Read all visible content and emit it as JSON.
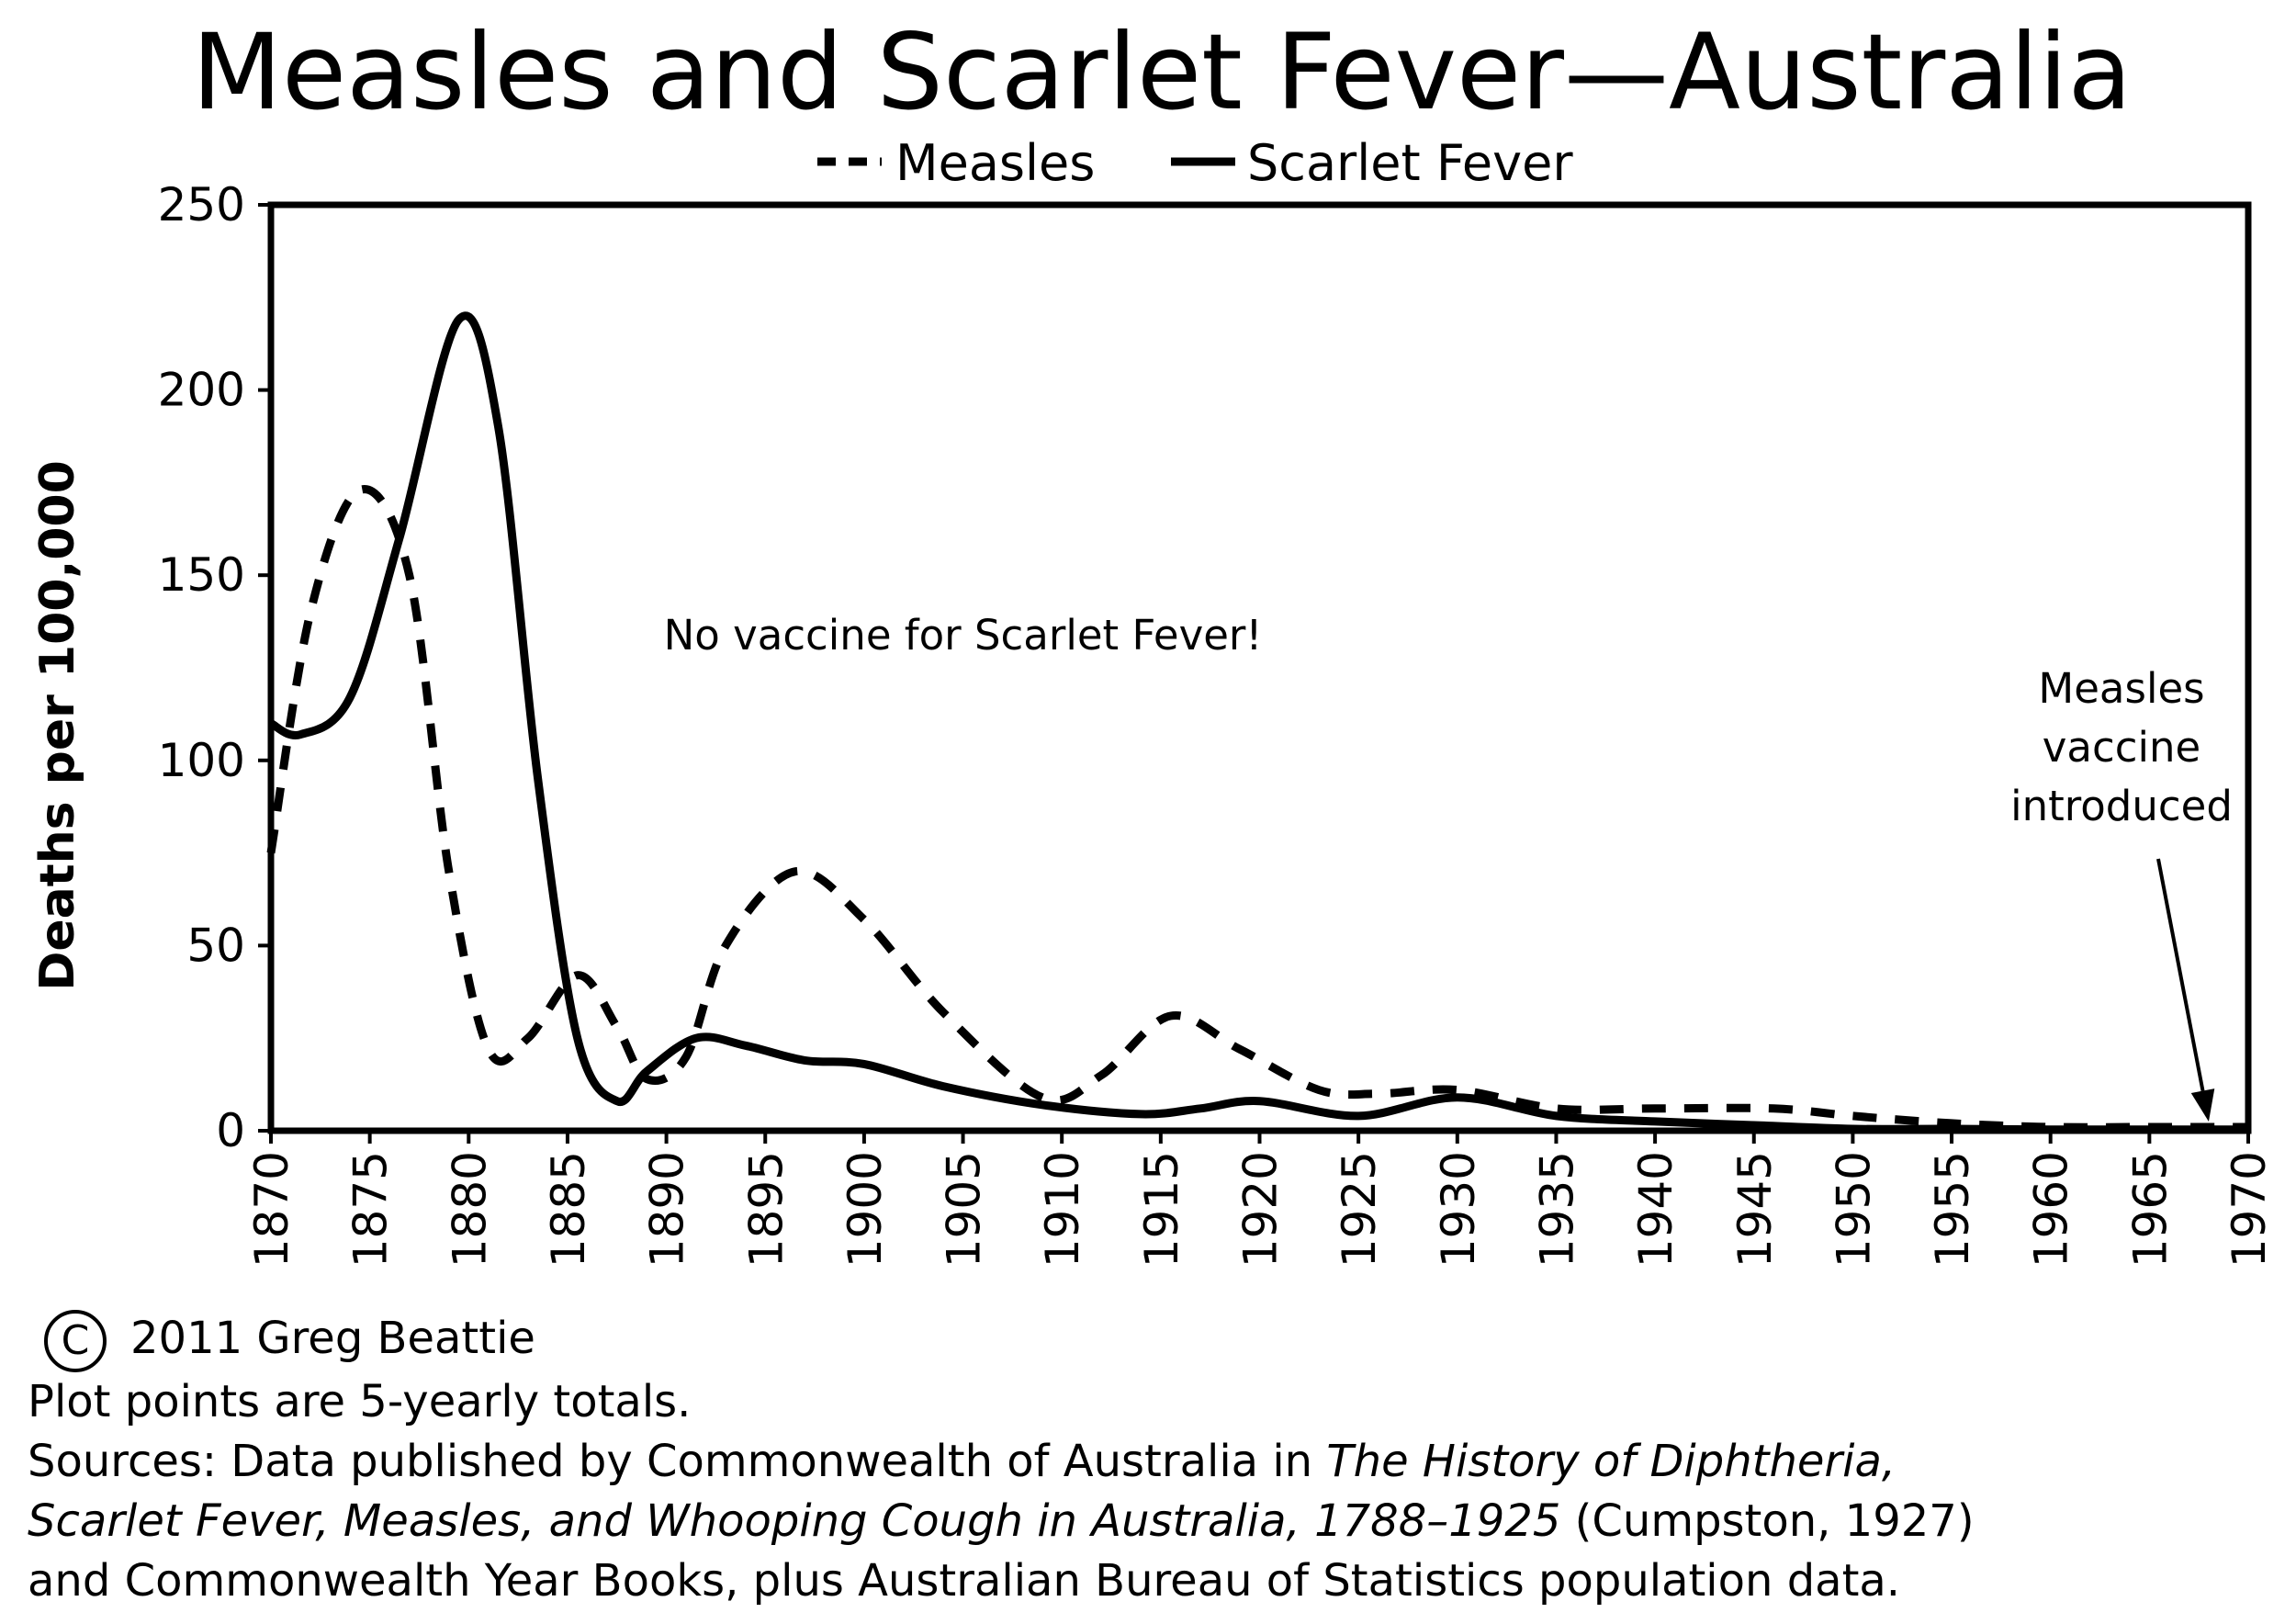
{
  "chart_data": {
    "type": "line",
    "title": "Measles and Scarlet Fever—Australia",
    "xlabel": "",
    "ylabel": "Deaths per 100,000",
    "xlim": [
      1870,
      1970
    ],
    "ylim": [
      0,
      250
    ],
    "x_ticks": [
      "1870",
      "1875",
      "1880",
      "1885",
      "1890",
      "1895",
      "1900",
      "1905",
      "1910",
      "1915",
      "1920",
      "1925",
      "1930",
      "1935",
      "1940",
      "1945",
      "1950",
      "1955",
      "1960",
      "1965",
      "1970"
    ],
    "y_ticks": [
      "0",
      "50",
      "100",
      "150",
      "200",
      "250"
    ],
    "legend": {
      "position": "top",
      "entries": [
        "Measles",
        "Scarlet Fever"
      ]
    },
    "series": [
      {
        "name": "Measles",
        "style": "dashed",
        "x": [
          1870,
          1872,
          1874.5,
          1877,
          1879,
          1881,
          1883,
          1885.5,
          1887.5,
          1889,
          1891,
          1893,
          1896.5,
          1900,
          1904,
          1909,
          1912,
          1915.5,
          1919,
          1923,
          1926,
          1930,
          1935,
          1940,
          1946,
          1950,
          1955,
          1960,
          1965,
          1970
        ],
        "values": [
          75,
          140,
          173,
          150,
          70,
          22,
          25,
          42,
          28,
          14,
          20,
          50,
          70,
          57,
          32,
          9,
          15,
          31,
          22,
          11,
          10,
          11,
          6,
          6,
          6,
          4,
          2,
          1,
          1,
          1
        ]
      },
      {
        "name": "Scarlet Fever",
        "style": "solid",
        "x": [
          1870,
          1871.5,
          1874,
          1876.5,
          1879.5,
          1881.5,
          1883.5,
          1885.5,
          1887.5,
          1889,
          1891.5,
          1894,
          1897,
          1900,
          1904,
          1909,
          1914,
          1917,
          1920,
          1925,
          1930,
          1935,
          1940,
          1945,
          1950,
          1955,
          1960,
          1965,
          1970
        ],
        "values": [
          110,
          107,
          117,
          160,
          219,
          190,
          95,
          25,
          8,
          16,
          25,
          23,
          19,
          18,
          12,
          7,
          4.5,
          6,
          8,
          4,
          9,
          4,
          2.5,
          1.5,
          0.5,
          0.5,
          0.3,
          0.3,
          0.3
        ]
      }
    ],
    "annotations": [
      {
        "text": "No vaccine for Scarlet Fever!",
        "x": 1905,
        "y": 130
      },
      {
        "lines": [
          "Measles",
          "vaccine",
          "introduced"
        ],
        "arrow_to_x": 1968,
        "arrow_to_y": 1
      }
    ]
  },
  "footer": {
    "copyright_symbol": "C",
    "copyright": "2011 Greg Beattie",
    "note": "Plot points are 5-yearly totals.",
    "sources_prefix": "Sources: Data published by Commonwealth of Australia in ",
    "sources_title_part1": "The History of Diphtheria,",
    "sources_title_part2": "Scarlet Fever, Measles, and Whooping Cough in Australia, 1788–1925",
    "sources_suffix": " (Cumpston, 1927)",
    "sources_line3": "and Commonwealth Year Books, plus Australian Bureau of Statistics population data."
  }
}
